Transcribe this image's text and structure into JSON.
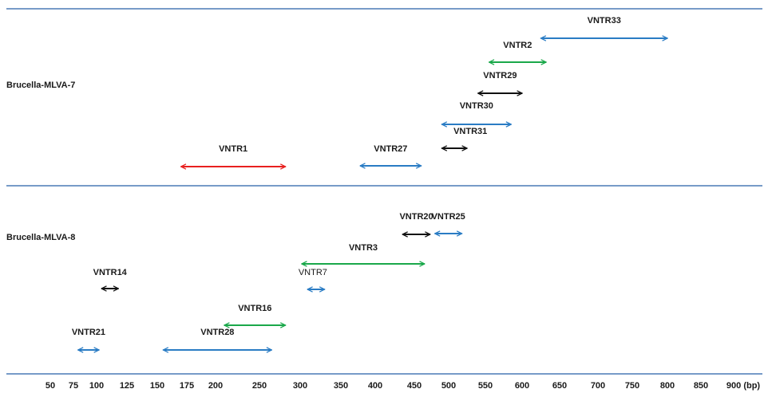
{
  "colors": {
    "separator": "#4a7ab5",
    "red": "#e8201f",
    "blue": "#2a7cc4",
    "green": "#1aa84a",
    "black": "#111111"
  },
  "panels": [
    {
      "label": "Brucella-MLVA-7"
    },
    {
      "label": "Brucella-MLVA-8"
    }
  ],
  "axis": {
    "ticks": [
      "50",
      "75",
      "100",
      "125",
      "150",
      "175",
      "200",
      "250",
      "300",
      "350",
      "400",
      "450",
      "500",
      "550",
      "600",
      "650",
      "700",
      "750",
      "800",
      "850",
      "900 (bp)"
    ]
  },
  "markers": [
    {
      "name": "VNTR33",
      "panel": 0,
      "color": "blue",
      "bold": true,
      "from": 625,
      "to": 800
    },
    {
      "name": "VNTR2",
      "panel": 0,
      "color": "green",
      "bold": true,
      "from": 555,
      "to": 632
    },
    {
      "name": "VNTR29",
      "panel": 0,
      "color": "black",
      "bold": true,
      "from": 540,
      "to": 600
    },
    {
      "name": "VNTR30",
      "panel": 0,
      "color": "blue",
      "bold": true,
      "from": 490,
      "to": 585
    },
    {
      "name": "VNTR31",
      "panel": 0,
      "color": "black",
      "bold": true,
      "from": 490,
      "to": 525
    },
    {
      "name": "VNTR1",
      "panel": 0,
      "color": "red",
      "bold": true,
      "from": 170,
      "to": 282
    },
    {
      "name": "VNTR27",
      "panel": 0,
      "color": "blue",
      "bold": true,
      "from": 378,
      "to": 460
    },
    {
      "name": "VNTR20",
      "panel": 1,
      "color": "black",
      "bold": true,
      "from": 435,
      "to": 473
    },
    {
      "name": "VNTR25",
      "panel": 1,
      "color": "blue",
      "bold": true,
      "from": 480,
      "to": 518
    },
    {
      "name": "VNTR3",
      "panel": 1,
      "color": "green",
      "bold": true,
      "from": 302,
      "to": 465
    },
    {
      "name": "VNTR14",
      "panel": 1,
      "color": "black",
      "bold": true,
      "from": 104,
      "to": 118
    },
    {
      "name": "VNTR7",
      "panel": 1,
      "color": "blue",
      "bold": false,
      "from": 309,
      "to": 330
    },
    {
      "name": "VNTR16",
      "panel": 1,
      "color": "green",
      "bold": true,
      "from": 210,
      "to": 282
    },
    {
      "name": "VNTR21",
      "panel": 1,
      "color": "blue",
      "bold": true,
      "from": 80,
      "to": 102
    },
    {
      "name": "VNTR28",
      "panel": 1,
      "color": "blue",
      "bold": true,
      "from": 155,
      "to": 265
    }
  ]
}
